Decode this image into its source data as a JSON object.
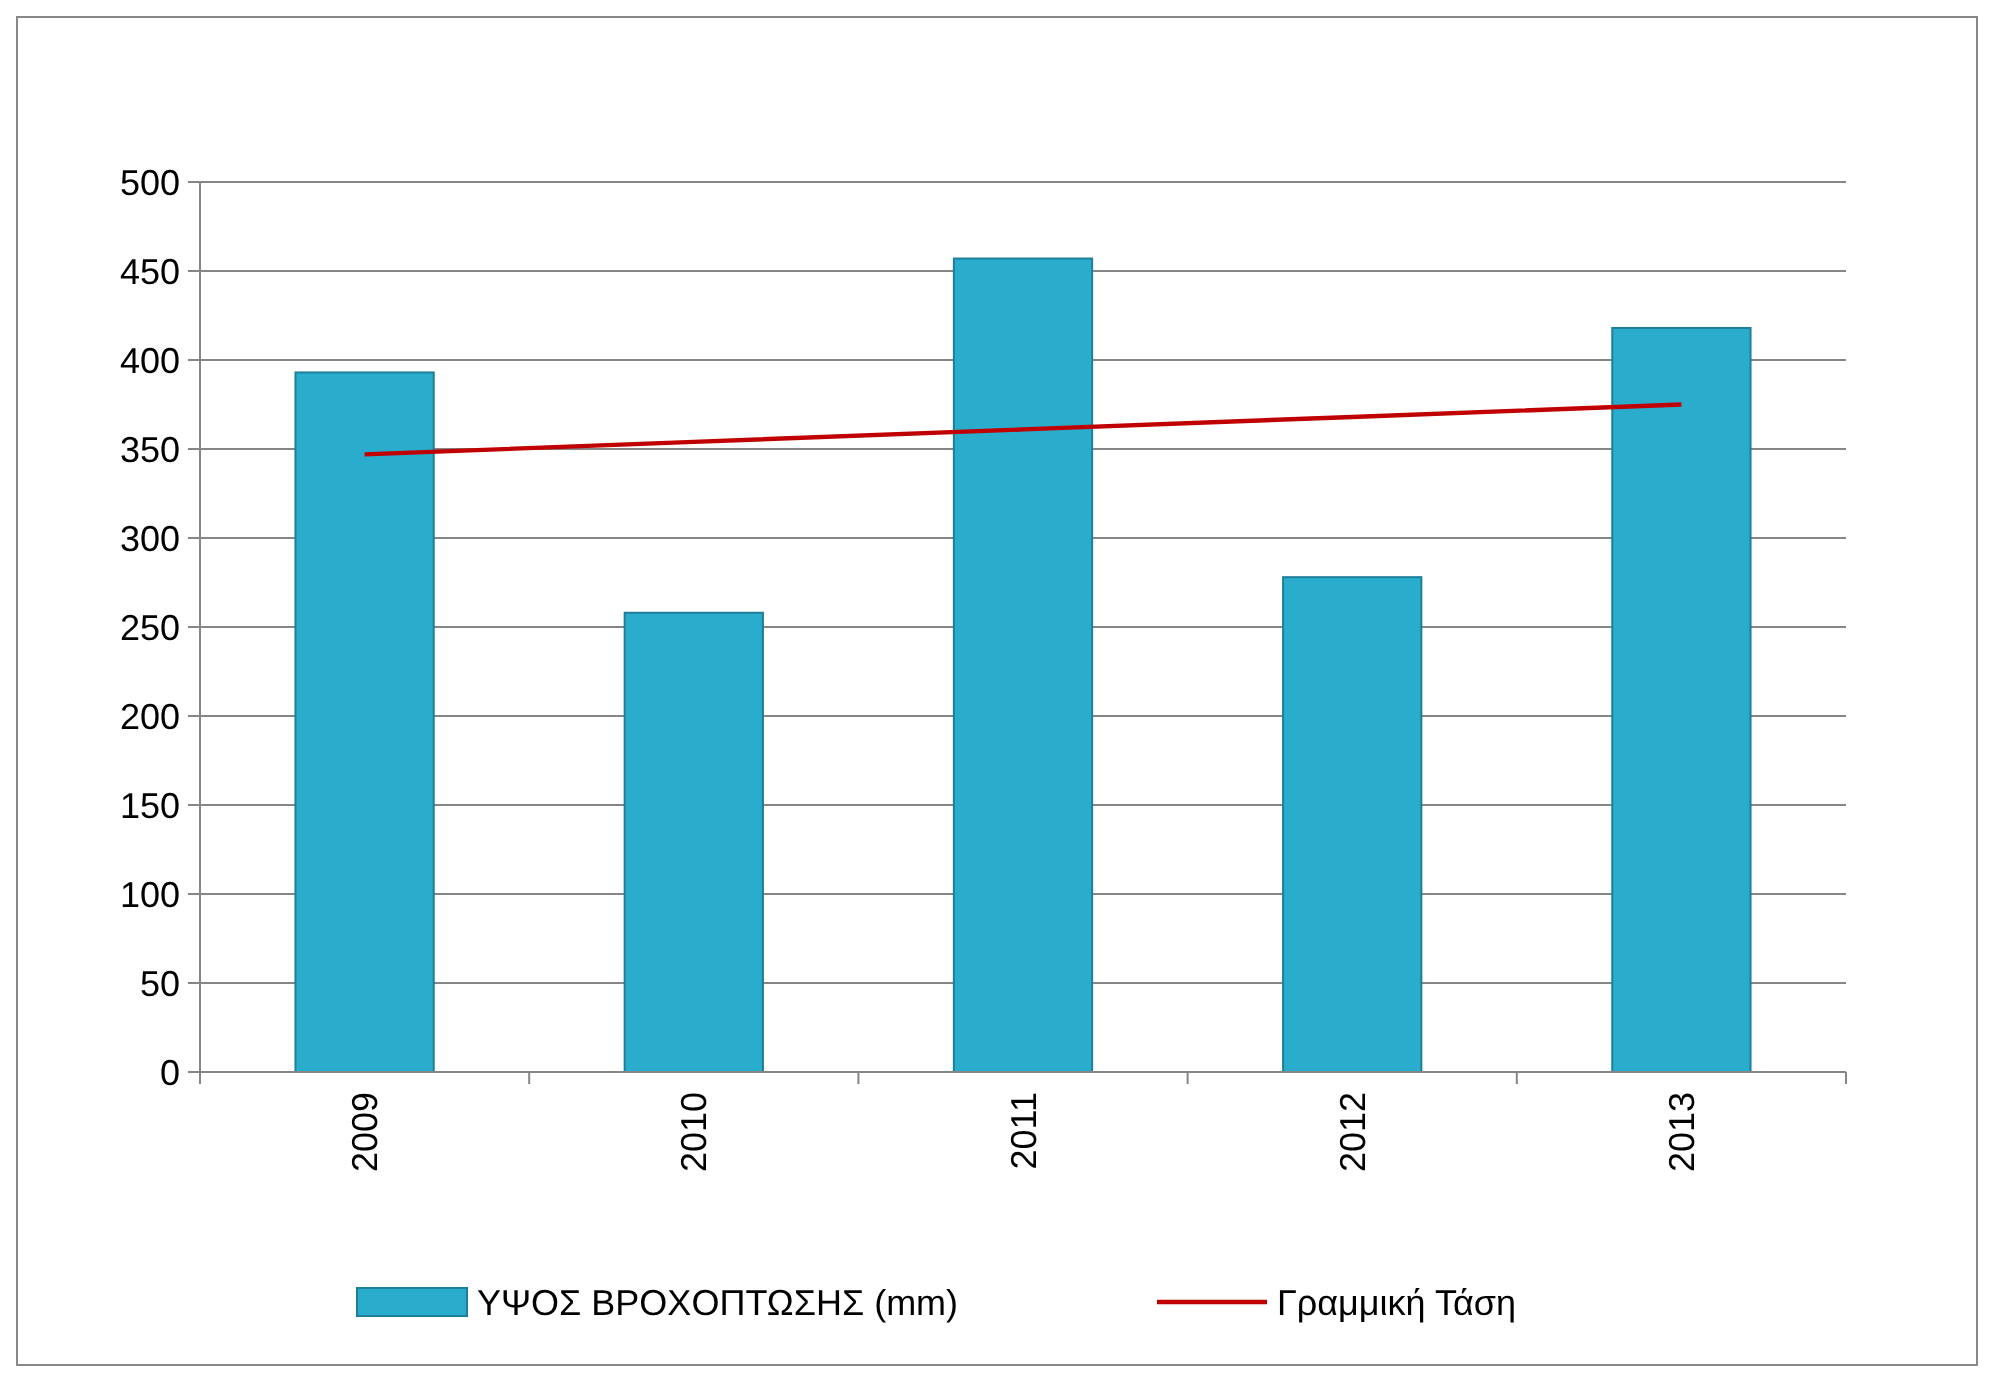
{
  "chart_data": {
    "type": "bar",
    "categories": [
      "2009",
      "2010",
      "2011",
      "2012",
      "2013"
    ],
    "series": [
      {
        "name": "ΥΨΟΣ ΒΡΟΧΟΠΤΩΣΗΣ (mm)",
        "color": "#2aaccd",
        "values": [
          393,
          258,
          457,
          278,
          418
        ]
      },
      {
        "name": "Γραμμική Τάση",
        "type": "line",
        "color": "#c00000",
        "values": [
          347,
          354,
          361,
          368,
          375
        ]
      }
    ],
    "ylim": [
      0,
      500
    ],
    "yticks": [
      0,
      50,
      100,
      150,
      200,
      250,
      300,
      350,
      400,
      450,
      500
    ],
    "grid": "y",
    "legend": "bottom"
  }
}
